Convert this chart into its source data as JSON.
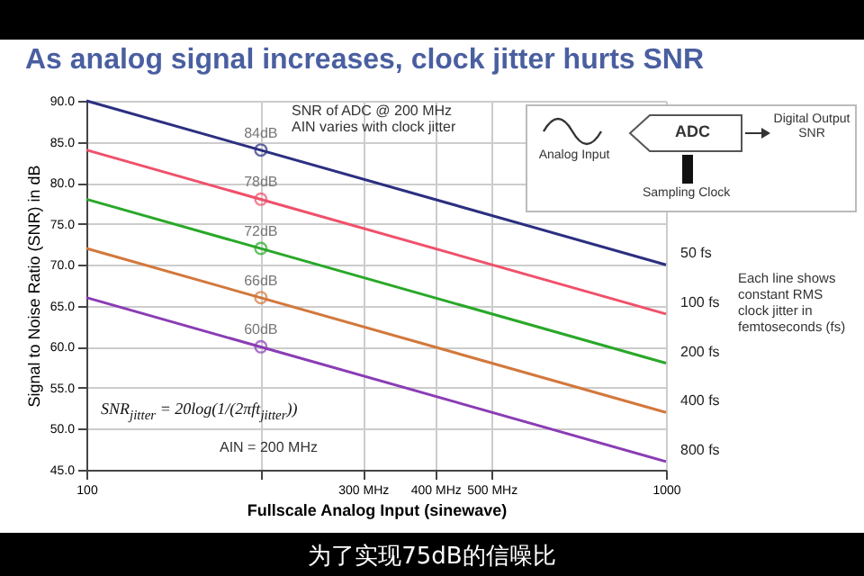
{
  "chart_data": {
    "type": "line",
    "title": "As analog signal increases, clock jitter hurts SNR",
    "xlabel": "Fullscale Analog Input (sinewave)",
    "ylabel": "Signal to Noise Ratio (SNR) in dB",
    "log": "x",
    "grid": true,
    "legend": false,
    "xlim": [
      100,
      1000
    ],
    "xticks": [
      100,
      {
        "value": 200,
        "label": null
      },
      {
        "value": 300,
        "label": "300 MHz"
      },
      {
        "value": 400,
        "label": "400 MHz"
      },
      {
        "value": 500,
        "label": "500 MHz"
      },
      1000
    ],
    "ylim": [
      45,
      90
    ],
    "yticks": [
      {
        "value": 45,
        "label": "45.0"
      },
      {
        "value": 50,
        "label": "50.0"
      },
      {
        "value": 55,
        "label": "55.0"
      },
      {
        "value": 60,
        "label": "60.0"
      },
      {
        "value": 65,
        "label": "65.0"
      },
      {
        "value": 70,
        "label": "70.0"
      },
      {
        "value": 75,
        "label": "75.0"
      },
      {
        "value": 80,
        "label": "80.0"
      },
      {
        "value": 85,
        "label": "85.0"
      },
      {
        "value": 90,
        "label": "90.0"
      }
    ],
    "series": [
      {
        "name": "50 fs",
        "color": "#2b2f80",
        "x": [
          100,
          1000
        ],
        "values": [
          90,
          70
        ]
      },
      {
        "name": "100 fs",
        "color": "#f0506a",
        "x": [
          100,
          1000
        ],
        "values": [
          84,
          64
        ]
      },
      {
        "name": "200 fs",
        "color": "#28a828",
        "x": [
          100,
          1000
        ],
        "values": [
          78,
          58
        ]
      },
      {
        "name": "400 fs",
        "color": "#d2783c",
        "x": [
          100,
          1000
        ],
        "values": [
          72,
          52
        ]
      },
      {
        "name": "800 fs",
        "color": "#8a3cb4",
        "x": [
          100,
          1000
        ],
        "values": [
          66,
          46
        ]
      },
      {
        "type": "scatter",
        "marker": "circle",
        "color": "#2b2f80",
        "x": [
          200
        ],
        "values": [
          84
        ],
        "value_labels": [
          "84dB"
        ]
      },
      {
        "type": "scatter",
        "marker": "circle",
        "color": "#f0506a",
        "x": [
          200
        ],
        "values": [
          78
        ],
        "value_labels": [
          "78dB"
        ]
      },
      {
        "type": "scatter",
        "marker": "circle",
        "color": "#28a828",
        "x": [
          200
        ],
        "values": [
          72
        ],
        "value_labels": [
          "72dB"
        ]
      },
      {
        "type": "scatter",
        "marker": "circle",
        "color": "#d2783c",
        "x": [
          200
        ],
        "values": [
          66
        ],
        "value_labels": [
          "66dB"
        ]
      },
      {
        "type": "scatter",
        "marker": "circle",
        "color": "#8a3cb4",
        "x": [
          200
        ],
        "values": [
          60
        ],
        "value_labels": [
          "60dB"
        ]
      }
    ],
    "annotations": [
      "SNR of ADC @ 200 MHz",
      "AIN varies with clock jitter",
      "Each line shows constant RMS clock jitter in femtoseconds (fs)",
      "AIN = 200 MHz",
      "SNR$_{jitter}$ = 20log(1/(2πft$_{jitter}$))",
      "ADC",
      "Analog Input",
      "Digital Output SNR",
      "Sampling Clock",
      "为了实现75dB的信噪比"
    ]
  }
}
